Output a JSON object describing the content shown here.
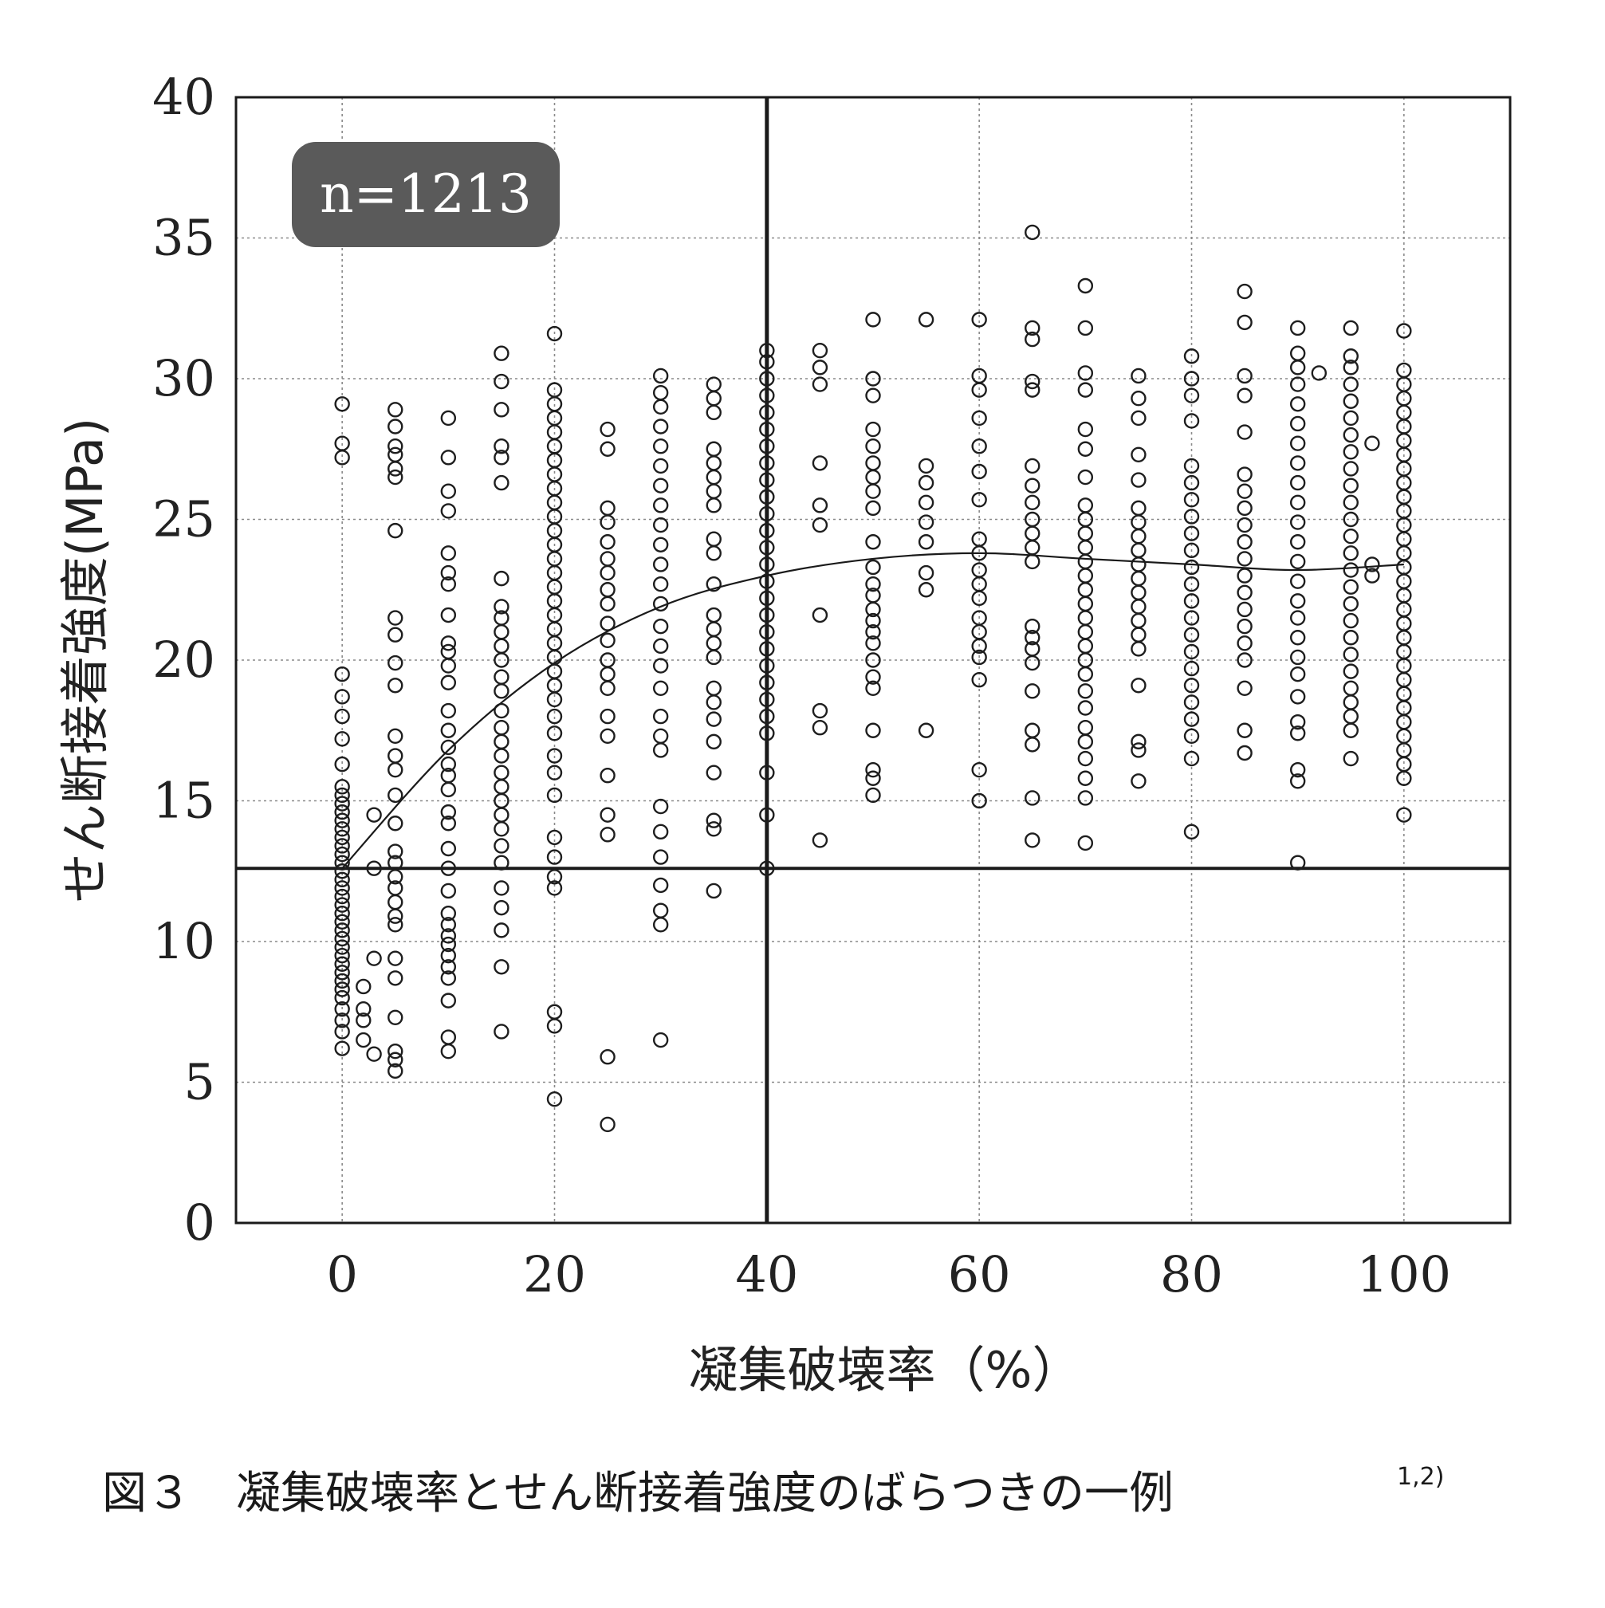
{
  "chart_data": {
    "type": "scatter",
    "title": "",
    "xlabel": "凝集破壊率（%）",
    "ylabel": "せん断接着強度(MPa)",
    "xlim": [
      -10,
      110
    ],
    "ylim": [
      0,
      40
    ],
    "x_ticks": [
      "0",
      "20",
      "40",
      "60",
      "80",
      "100"
    ],
    "y_ticks": [
      "0",
      "5",
      "10",
      "15",
      "20",
      "25",
      "30",
      "35",
      "40"
    ],
    "grid": true,
    "annotation": "n=1213",
    "reference_lines": {
      "x": 40,
      "y": 12.6
    },
    "fit_curve": [
      [
        0,
        12.6
      ],
      [
        10,
        16.8
      ],
      [
        20,
        19.9
      ],
      [
        30,
        21.9
      ],
      [
        40,
        23.0
      ],
      [
        50,
        23.6
      ],
      [
        60,
        23.8
      ],
      [
        70,
        23.6
      ],
      [
        80,
        23.4
      ],
      [
        90,
        23.2
      ],
      [
        100,
        23.4
      ]
    ],
    "series": [
      {
        "x": 0,
        "y": [
          6.2,
          6.8,
          7.2,
          7.6,
          8.0,
          8.3,
          8.6,
          8.9,
          9.2,
          9.5,
          9.8,
          10.1,
          10.4,
          10.7,
          11.0,
          11.3,
          11.6,
          11.9,
          12.2,
          12.5,
          12.8,
          13.1,
          13.4,
          13.7,
          14.0,
          14.3,
          14.6,
          14.9,
          15.2,
          15.5,
          16.3,
          17.2,
          18.0,
          18.7,
          19.5,
          27.2,
          27.7,
          29.1
        ]
      },
      {
        "x": 2,
        "y": [
          6.5,
          7.2,
          7.6,
          8.4
        ]
      },
      {
        "x": 3,
        "y": [
          6.0,
          9.4,
          12.6,
          14.5
        ]
      },
      {
        "x": 5,
        "y": [
          5.4,
          5.8,
          6.1,
          7.3,
          8.7,
          9.4,
          10.6,
          10.9,
          11.4,
          11.9,
          12.3,
          12.8,
          13.2,
          14.2,
          15.2,
          16.1,
          16.6,
          17.3,
          19.1,
          19.9,
          20.9,
          21.5,
          24.6,
          26.5,
          26.8,
          27.3,
          27.6,
          28.3,
          28.9
        ]
      },
      {
        "x": 10,
        "y": [
          6.1,
          6.6,
          7.9,
          8.7,
          9.1,
          9.5,
          9.9,
          10.2,
          10.6,
          11.0,
          11.8,
          12.6,
          13.3,
          14.2,
          14.6,
          15.4,
          15.9,
          16.3,
          16.9,
          17.5,
          18.2,
          19.2,
          19.8,
          20.3,
          20.6,
          21.6,
          22.7,
          23.1,
          23.8,
          25.3,
          26.0,
          27.2,
          28.6
        ]
      },
      {
        "x": 15,
        "y": [
          6.8,
          9.1,
          10.4,
          11.2,
          11.9,
          12.8,
          13.4,
          14.0,
          14.5,
          15.0,
          15.5,
          16.0,
          16.6,
          17.1,
          17.6,
          18.2,
          18.9,
          19.4,
          20.0,
          20.5,
          21.0,
          21.5,
          21.9,
          22.9,
          26.3,
          27.2,
          27.6,
          28.9,
          29.9,
          30.9
        ]
      },
      {
        "x": 20,
        "y": [
          4.4,
          7.0,
          7.5,
          11.9,
          12.3,
          13.0,
          13.7,
          15.2,
          16.0,
          16.6,
          17.4,
          18.0,
          18.6,
          19.1,
          19.6,
          20.1,
          20.6,
          21.1,
          21.6,
          22.1,
          22.6,
          23.1,
          23.6,
          24.1,
          24.6,
          25.1,
          25.6,
          26.1,
          26.6,
          27.1,
          27.6,
          28.1,
          28.6,
          29.1,
          29.6,
          31.6
        ]
      },
      {
        "x": 25,
        "y": [
          3.5,
          5.9,
          13.8,
          14.5,
          15.9,
          17.3,
          18.0,
          19.0,
          19.5,
          20.0,
          20.7,
          21.3,
          22.0,
          22.5,
          23.1,
          23.6,
          24.2,
          24.9,
          25.4,
          27.5,
          28.2
        ]
      },
      {
        "x": 30,
        "y": [
          6.5,
          10.6,
          11.1,
          12.0,
          13.0,
          13.9,
          14.8,
          16.8,
          17.3,
          18.0,
          19.0,
          19.8,
          20.5,
          21.2,
          22.0,
          22.7,
          23.4,
          24.1,
          24.8,
          25.5,
          26.2,
          26.9,
          27.6,
          28.3,
          29.0,
          29.5,
          30.1
        ]
      },
      {
        "x": 35,
        "y": [
          11.8,
          14.0,
          14.3,
          16.0,
          17.1,
          17.9,
          18.5,
          19.0,
          20.1,
          20.6,
          21.1,
          21.6,
          22.7,
          23.8,
          24.3,
          25.5,
          26.0,
          26.5,
          27.0,
          27.5,
          28.8,
          29.3,
          29.8
        ]
      },
      {
        "x": 40,
        "y": [
          12.6,
          14.5,
          16.0,
          17.4,
          18.0,
          18.6,
          19.2,
          19.8,
          20.4,
          21.0,
          21.6,
          22.2,
          22.8,
          23.4,
          24.0,
          24.6,
          25.2,
          25.8,
          26.4,
          27.0,
          27.6,
          28.2,
          28.8,
          29.4,
          30.0,
          30.6,
          31.0
        ]
      },
      {
        "x": 45,
        "y": [
          13.6,
          17.6,
          18.2,
          21.6,
          24.8,
          25.5,
          27.0,
          29.8,
          30.4,
          31.0
        ]
      },
      {
        "x": 50,
        "y": [
          15.2,
          15.8,
          16.1,
          17.5,
          19.0,
          19.4,
          20.0,
          20.6,
          21.0,
          21.4,
          21.8,
          22.3,
          22.7,
          23.3,
          24.2,
          25.4,
          26.0,
          26.5,
          27.0,
          27.6,
          28.2,
          29.4,
          30.0,
          32.1
        ]
      },
      {
        "x": 55,
        "y": [
          17.5,
          22.5,
          23.1,
          24.2,
          24.9,
          25.6,
          26.3,
          26.9,
          32.1
        ]
      },
      {
        "x": 60,
        "y": [
          15.0,
          16.1,
          19.3,
          20.1,
          20.5,
          21.0,
          21.5,
          22.2,
          22.7,
          23.2,
          23.8,
          24.3,
          25.7,
          26.7,
          27.6,
          28.6,
          29.6,
          30.1,
          32.1
        ]
      },
      {
        "x": 65,
        "y": [
          13.6,
          15.1,
          17.0,
          17.5,
          18.9,
          19.9,
          20.4,
          20.8,
          21.2,
          23.5,
          24.0,
          24.5,
          25.0,
          25.6,
          26.2,
          26.9,
          29.6,
          29.9,
          31.4,
          31.8,
          35.2
        ]
      },
      {
        "x": 70,
        "y": [
          13.5,
          15.1,
          15.8,
          16.5,
          17.1,
          17.6,
          18.3,
          18.9,
          19.5,
          20.0,
          20.5,
          21.0,
          21.5,
          22.0,
          22.5,
          23.0,
          23.5,
          24.0,
          24.5,
          25.0,
          25.5,
          26.5,
          27.5,
          28.2,
          29.6,
          30.2,
          31.8,
          33.3
        ]
      },
      {
        "x": 75,
        "y": [
          15.7,
          16.8,
          17.1,
          19.1,
          20.4,
          20.9,
          21.4,
          21.9,
          22.4,
          22.9,
          23.4,
          23.9,
          24.4,
          24.9,
          25.4,
          26.4,
          27.3,
          28.6,
          29.3,
          30.1
        ]
      },
      {
        "x": 80,
        "y": [
          13.9,
          16.5,
          17.3,
          17.9,
          18.5,
          19.1,
          19.7,
          20.3,
          20.9,
          21.5,
          22.1,
          22.7,
          23.3,
          23.9,
          24.5,
          25.1,
          25.7,
          26.3,
          26.9,
          28.5,
          29.4,
          30.0,
          30.8
        ]
      },
      {
        "x": 85,
        "y": [
          16.7,
          17.5,
          19.0,
          20.0,
          20.6,
          21.2,
          21.8,
          22.4,
          23.0,
          23.6,
          24.2,
          24.8,
          25.4,
          26.0,
          26.6,
          28.1,
          29.4,
          30.1,
          32.0,
          33.1
        ]
      },
      {
        "x": 90,
        "y": [
          12.8,
          15.7,
          16.1,
          17.4,
          17.8,
          18.7,
          19.5,
          20.1,
          20.8,
          21.5,
          22.1,
          22.8,
          23.5,
          24.2,
          24.9,
          25.6,
          26.3,
          27.0,
          27.7,
          28.4,
          29.1,
          29.8,
          30.4,
          30.9,
          31.8
        ]
      },
      {
        "x": 92,
        "y": [
          30.2
        ]
      },
      {
        "x": 95,
        "y": [
          16.5,
          17.5,
          18.0,
          18.5,
          19.0,
          19.6,
          20.2,
          20.8,
          21.4,
          22.0,
          22.6,
          23.2,
          23.8,
          24.4,
          25.0,
          25.6,
          26.2,
          26.8,
          27.4,
          28.0,
          28.6,
          29.2,
          29.8,
          30.4,
          30.8,
          31.8
        ]
      },
      {
        "x": 97,
        "y": [
          23.0,
          23.4,
          27.7
        ]
      },
      {
        "x": 100,
        "y": [
          14.5,
          15.8,
          16.3,
          16.8,
          17.3,
          17.8,
          18.3,
          18.8,
          19.3,
          19.8,
          20.3,
          20.8,
          21.3,
          21.8,
          22.3,
          22.8,
          23.3,
          23.8,
          24.3,
          24.8,
          25.3,
          25.8,
          26.3,
          26.8,
          27.3,
          27.8,
          28.3,
          28.8,
          29.3,
          29.8,
          30.3,
          31.7
        ]
      }
    ]
  },
  "badge": {
    "text": "n=1213"
  },
  "caption": {
    "text": "図３　凝集破壊率とせん断接着強度のばらつきの一例",
    "ref": "1,2)"
  },
  "colors": {
    "badge_bg": "#5a5a5a",
    "marker": "#1e1e1e",
    "grid": "#8a8a8a",
    "axis": "#1a1a1a"
  }
}
